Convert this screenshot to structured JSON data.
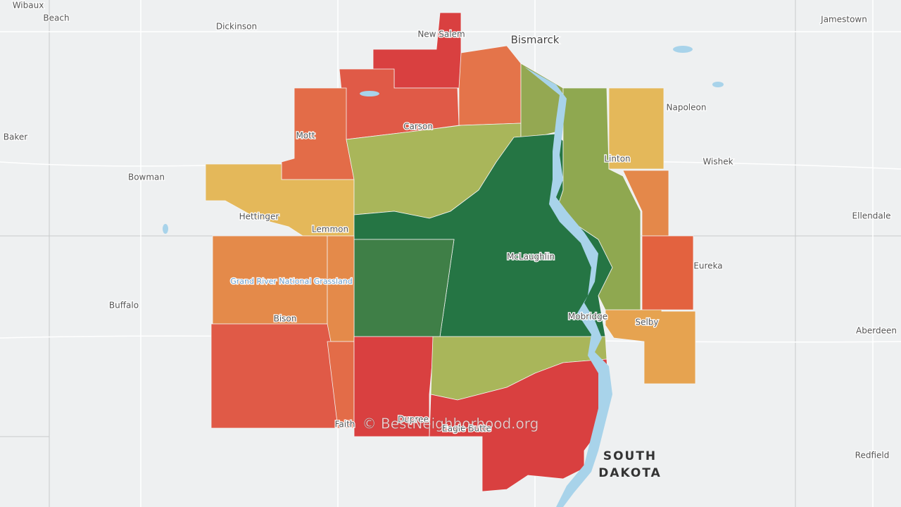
{
  "places": [
    "Wibaux",
    "Beach",
    "Dickinson",
    "New Salem",
    "Bismarck",
    "Jamestown",
    "Baker",
    "Mott",
    "Carson",
    "Napoleon",
    "Linton",
    "Wishek",
    "Bowman",
    "Hettinger",
    "Lemmon",
    "Ellendale",
    "McLaughlin",
    "Eureka",
    "Grand River National Grassland",
    "Buffalo",
    "Bison",
    "Mobridge",
    "Selby",
    "Aberdeen",
    "Dupree",
    "Faith",
    "Eagle Butte",
    "Redfield"
  ],
  "region_label": "SOUTH DAKOTA",
  "watermark": "© BestNeighborhood.org"
}
